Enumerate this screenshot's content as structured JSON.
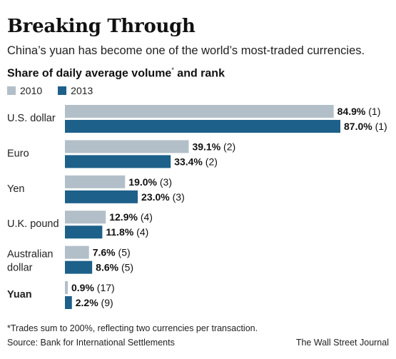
{
  "header": {
    "title": "Breaking Through",
    "subtitle": "China’s yuan has become one of the world’s most-traded currencies.",
    "subhead": "Share of daily average volume",
    "subhead_mark": "*",
    "subhead_tail": " and rank"
  },
  "legend": [
    {
      "label": "2010",
      "color": "#b3bfc8"
    },
    {
      "label": "2013",
      "color": "#1d6089"
    }
  ],
  "chart_data": {
    "type": "bar",
    "orientation": "horizontal",
    "categories": [
      "U.S. dollar",
      "Euro",
      "Yen",
      "U.K. pound",
      "Australian dollar",
      "Yuan"
    ],
    "series": [
      {
        "name": "2010",
        "values": [
          84.9,
          39.1,
          19.0,
          12.9,
          7.6,
          0.9
        ],
        "ranks": [
          "(1)",
          "(2)",
          "(3)",
          "(4)",
          "(5)",
          "(17)"
        ],
        "color": "#b3bfc8"
      },
      {
        "name": "2013",
        "values": [
          87.0,
          33.4,
          23.0,
          11.8,
          8.6,
          2.2
        ],
        "ranks": [
          "(1)",
          "(2)",
          "(3)",
          "(4)",
          "(5)",
          "(9)"
        ],
        "color": "#1d6089"
      }
    ],
    "value_labels": [
      [
        "84.9%",
        "39.1%",
        "19.0%",
        "12.9%",
        "7.6%",
        "0.9%"
      ],
      [
        "87.0%",
        "33.4%",
        "23.0%",
        "11.8%",
        "8.6%",
        "2.2%"
      ]
    ],
    "bold_category": "Yuan",
    "grid": false
  },
  "footer": {
    "footnote": "*Trades sum to 200%, reflecting two currencies per transaction.",
    "source": "Source: Bank for International Settlements",
    "credit": "The Wall Street Journal"
  }
}
